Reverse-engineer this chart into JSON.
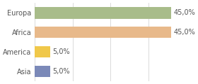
{
  "categories": [
    "Asia",
    "America",
    "Africa",
    "Europa"
  ],
  "values": [
    5.0,
    5.0,
    45.0,
    45.0
  ],
  "bar_colors": [
    "#7b89b8",
    "#f0c84a",
    "#e8b98a",
    "#a8bc8a"
  ],
  "labels": [
    "5,0%",
    "5,0%",
    "45,0%",
    "45,0%"
  ],
  "background_color": "#ffffff",
  "xlim": [
    0,
    50
  ],
  "label_fontsize": 7,
  "tick_fontsize": 7,
  "grid_lines": [
    0,
    12.5,
    25,
    37.5,
    50
  ]
}
